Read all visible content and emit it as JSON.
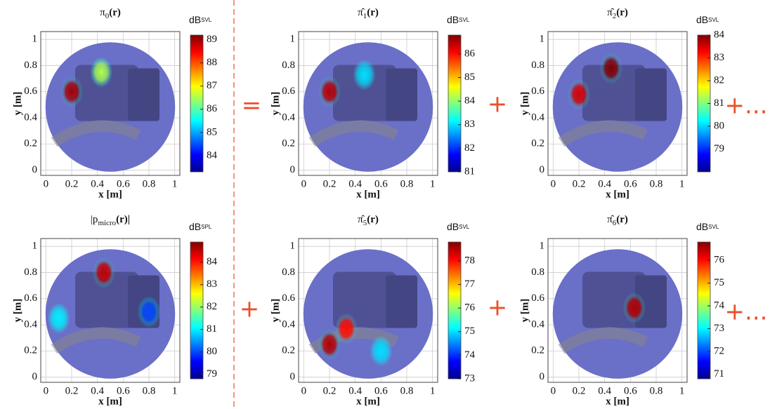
{
  "operators": [
    "=",
    "+",
    "+...",
    "+",
    "+",
    "+..."
  ],
  "chart_data": [
    {
      "type": "heatmap",
      "title": [
        "π",
        "0",
        "(r)"
      ],
      "xlabel": "x [m]",
      "ylabel": "y [m]",
      "xlim": [
        -0.04,
        1.04
      ],
      "ylim": [
        -0.04,
        1.06
      ],
      "xticks": [
        0,
        0.2,
        0.4,
        0.6,
        0.8,
        1
      ],
      "yticks": [
        0,
        0.2,
        0.4,
        0.6,
        0.8,
        1
      ],
      "grid": true,
      "colorbar_label": [
        "dB",
        "SVL"
      ],
      "clim": [
        83.3,
        89.2
      ],
      "colorbar_ticks": [
        84,
        85,
        86,
        87,
        88,
        89
      ],
      "hotspots": {
        "x": [
          0.2,
          0.43
        ],
        "y": [
          0.6,
          0.75
        ],
        "level": [
          89,
          86.5
        ]
      }
    },
    {
      "type": "heatmap",
      "title": [
        "π̂",
        "1",
        "(r)"
      ],
      "xlabel": "x [m]",
      "ylabel": "y [m]",
      "xlim": [
        -0.04,
        1.04
      ],
      "ylim": [
        -0.04,
        1.06
      ],
      "xticks": [
        0,
        0.2,
        0.4,
        0.6,
        0.8,
        1
      ],
      "yticks": [
        0,
        0.2,
        0.4,
        0.6,
        0.8,
        1
      ],
      "grid": true,
      "colorbar_label": [
        "dB",
        "SVL"
      ],
      "clim": [
        81,
        86.8
      ],
      "colorbar_ticks": [
        81,
        82,
        83,
        84,
        85,
        86
      ],
      "hotspots": {
        "x": [
          0.2,
          0.47
        ],
        "y": [
          0.6,
          0.73
        ],
        "level": [
          86.5,
          83
        ]
      }
    },
    {
      "type": "heatmap",
      "title": [
        "π̂",
        "2",
        "(r)"
      ],
      "xlabel": "x [m]",
      "ylabel": "y [m]",
      "xlim": [
        -0.04,
        1.04
      ],
      "ylim": [
        -0.04,
        1.06
      ],
      "xticks": [
        0,
        0.2,
        0.4,
        0.6,
        0.8,
        1
      ],
      "yticks": [
        0,
        0.2,
        0.4,
        0.6,
        0.8,
        1
      ],
      "grid": true,
      "colorbar_label": [
        "dB",
        "SVL"
      ],
      "clim": [
        78,
        84
      ],
      "colorbar_ticks": [
        79,
        80,
        81,
        82,
        83,
        84
      ],
      "hotspots": {
        "x": [
          0.45,
          0.2
        ],
        "y": [
          0.78,
          0.58
        ],
        "level": [
          84,
          83.5
        ]
      }
    },
    {
      "type": "heatmap",
      "title": [
        "|p",
        "micro",
        "(r)|"
      ],
      "xlabel": "x [m]",
      "ylabel": "y [m]",
      "xlim": [
        -0.04,
        1.04
      ],
      "ylim": [
        -0.04,
        1.06
      ],
      "xticks": [
        0,
        0.2,
        0.4,
        0.6,
        0.8,
        1
      ],
      "yticks": [
        0,
        0.2,
        0.4,
        0.6,
        0.8,
        1
      ],
      "grid": true,
      "colorbar_label": [
        "dB",
        "SPL"
      ],
      "clim": [
        78.8,
        84.9
      ],
      "colorbar_ticks": [
        79,
        80,
        81,
        82,
        83,
        84
      ],
      "hotspots": {
        "x": [
          0.45,
          0.1,
          0.8
        ],
        "y": [
          0.8,
          0.45,
          0.5
        ],
        "level": [
          84.5,
          81,
          80
        ]
      }
    },
    {
      "type": "heatmap",
      "title": [
        "π̂",
        "5",
        "(r)"
      ],
      "xlabel": "x [m]",
      "ylabel": "y [m]",
      "xlim": [
        -0.04,
        1.04
      ],
      "ylim": [
        -0.04,
        1.06
      ],
      "xticks": [
        0,
        0.2,
        0.4,
        0.6,
        0.8,
        1
      ],
      "yticks": [
        0,
        0.2,
        0.4,
        0.6,
        0.8,
        1
      ],
      "grid": true,
      "colorbar_label": [
        "dB",
        "SVL"
      ],
      "clim": [
        73,
        78.8
      ],
      "colorbar_ticks": [
        73,
        74,
        75,
        76,
        77,
        78
      ],
      "hotspots": {
        "x": [
          0.2,
          0.33,
          0.6
        ],
        "y": [
          0.25,
          0.37,
          0.2
        ],
        "level": [
          78.5,
          78,
          75
        ]
      }
    },
    {
      "type": "heatmap",
      "title": [
        "π̂",
        "6",
        "(r)"
      ],
      "xlabel": "x [m]",
      "ylabel": "y [m]",
      "xlim": [
        -0.04,
        1.04
      ],
      "ylim": [
        -0.04,
        1.06
      ],
      "xticks": [
        0,
        0.2,
        0.4,
        0.6,
        0.8,
        1
      ],
      "yticks": [
        0,
        0.2,
        0.4,
        0.6,
        0.8,
        1
      ],
      "grid": true,
      "colorbar_label": [
        "dB",
        "SVL"
      ],
      "clim": [
        70.8,
        76.8
      ],
      "colorbar_ticks": [
        71,
        72,
        73,
        74,
        75,
        76
      ],
      "hotspots": {
        "x": [
          0.63
        ],
        "y": [
          0.53
        ],
        "level": [
          76.5
        ]
      }
    }
  ]
}
